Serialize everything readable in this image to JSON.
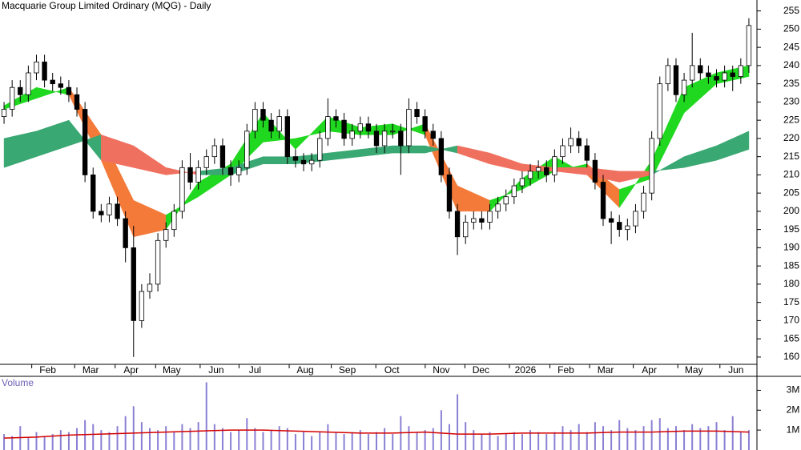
{
  "chart_data": [
    {
      "type": "candlestick",
      "title": "Macquarie Group Limited Ordinary (MQG) - Daily",
      "xlim": [
        -0.5,
        92.5
      ],
      "xticks": [
        {
          "value": 5.4,
          "label": "Feb"
        },
        {
          "value": 10.7,
          "label": "Mar"
        },
        {
          "value": 15.7,
          "label": "Apr"
        },
        {
          "value": 20.7,
          "label": "May"
        },
        {
          "value": 26.2,
          "label": "Jun"
        },
        {
          "value": 31,
          "label": "Jul"
        },
        {
          "value": 37.2,
          "label": "Aug"
        },
        {
          "value": 42.4,
          "label": "Sep"
        },
        {
          "value": 47.9,
          "label": "Oct"
        },
        {
          "value": 54,
          "label": "Nov"
        },
        {
          "value": 58.9,
          "label": "Dec"
        },
        {
          "value": 64.4,
          "label": "2026"
        },
        {
          "value": 69.4,
          "label": "Feb"
        },
        {
          "value": 74.3,
          "label": "Mar"
        },
        {
          "value": 79.7,
          "label": "Apr"
        },
        {
          "value": 85.2,
          "label": "May"
        },
        {
          "value": 90.4,
          "label": "Jun"
        }
      ],
      "ylim": [
        158,
        258
      ],
      "yticks": [
        160,
        165,
        170,
        175,
        180,
        185,
        190,
        195,
        200,
        205,
        210,
        215,
        220,
        225,
        230,
        235,
        240,
        245,
        250,
        255
      ],
      "up_color": "#ffffff",
      "down_color": "#000000",
      "outline_color": "#000000",
      "open": [
        226,
        228,
        234,
        232,
        238,
        241,
        236,
        235,
        234,
        232,
        228,
        210,
        200,
        199,
        202,
        198,
        190,
        170,
        178,
        180,
        192,
        195,
        200,
        212,
        208,
        212,
        215,
        218,
        212,
        210,
        212,
        222,
        228,
        225,
        222,
        226,
        215,
        214,
        213,
        214,
        220,
        226,
        225,
        220,
        222,
        224,
        222,
        218,
        222,
        222,
        218,
        228,
        226,
        222,
        220,
        210,
        200,
        193,
        197,
        198,
        197,
        200,
        202,
        204,
        207,
        209,
        211,
        212,
        210,
        215,
        218,
        220,
        218,
        214,
        208,
        198,
        197,
        195,
        196,
        200,
        205,
        220,
        235,
        240,
        232,
        236,
        240,
        238,
        237,
        236,
        238,
        237,
        240
      ],
      "high": [
        230,
        236,
        236,
        240,
        243,
        243,
        238,
        237,
        236,
        234,
        230,
        212,
        202,
        204,
        204,
        200,
        196,
        180,
        183,
        194,
        197,
        202,
        214,
        216,
        214,
        217,
        220,
        220,
        214,
        214,
        224,
        230,
        230,
        227,
        228,
        228,
        217,
        216,
        216,
        222,
        231,
        228,
        227,
        224,
        226,
        226,
        224,
        224,
        224,
        224,
        231,
        230,
        228,
        224,
        222,
        212,
        202,
        199,
        200,
        200,
        202,
        204,
        206,
        209,
        211,
        213,
        214,
        214,
        217,
        220,
        223,
        222,
        220,
        216,
        210,
        200,
        199,
        198,
        202,
        207,
        222,
        237,
        242,
        242,
        238,
        249,
        242,
        240,
        239,
        240,
        240,
        242,
        253
      ],
      "low": [
        224,
        226,
        230,
        230,
        236,
        234,
        233,
        232,
        230,
        226,
        208,
        198,
        197,
        197,
        196,
        186,
        160,
        168,
        176,
        178,
        190,
        193,
        198,
        206,
        206,
        210,
        213,
        210,
        207,
        208,
        210,
        220,
        223,
        220,
        220,
        213,
        212,
        211,
        211,
        212,
        218,
        223,
        218,
        218,
        220,
        220,
        216,
        216,
        220,
        210,
        216,
        224,
        220,
        218,
        208,
        198,
        188,
        191,
        195,
        195,
        195,
        198,
        200,
        202,
        205,
        207,
        209,
        208,
        208,
        213,
        216,
        216,
        212,
        206,
        196,
        191,
        193,
        192,
        194,
        198,
        203,
        218,
        233,
        230,
        230,
        234,
        236,
        235,
        234,
        234,
        233,
        235,
        238
      ],
      "close": [
        228,
        234,
        232,
        238,
        241,
        236,
        235,
        234,
        232,
        228,
        210,
        200,
        199,
        202,
        198,
        190,
        170,
        178,
        180,
        192,
        195,
        200,
        212,
        208,
        212,
        215,
        218,
        212,
        210,
        212,
        222,
        228,
        225,
        222,
        226,
        215,
        214,
        213,
        214,
        220,
        226,
        225,
        220,
        222,
        224,
        222,
        218,
        222,
        222,
        218,
        228,
        226,
        222,
        220,
        210,
        200,
        193,
        197,
        198,
        197,
        200,
        202,
        204,
        207,
        209,
        211,
        212,
        210,
        215,
        218,
        220,
        218,
        214,
        208,
        198,
        197,
        195,
        196,
        200,
        205,
        220,
        235,
        240,
        232,
        236,
        240,
        238,
        237,
        236,
        238,
        237,
        240,
        251
      ],
      "ribbons": [
        {
          "color_up": "#1fd81f",
          "color_down": "#f47a3a",
          "x": [
            0,
            4,
            8,
            12,
            16,
            20,
            24,
            28,
            32,
            36,
            40,
            44,
            48,
            52,
            56,
            60,
            64,
            68,
            72,
            76,
            80,
            84,
            88,
            92
          ],
          "short_ma": [
            229,
            234,
            232,
            214,
            193,
            195,
            208,
            213,
            227,
            217,
            226,
            223,
            224,
            221,
            200,
            200,
            209,
            215,
            210,
            201,
            214,
            234,
            238,
            240
          ],
          "long_ma": [
            228,
            231,
            234,
            221,
            203,
            199,
            204,
            210,
            219,
            220,
            222,
            221,
            221,
            224,
            207,
            203,
            206,
            211,
            213,
            206,
            209,
            227,
            235,
            237
          ]
        },
        {
          "color_up": "#3aa872",
          "color_down": "#f07060",
          "x": [
            0,
            4,
            8,
            12,
            16,
            20,
            24,
            28,
            32,
            36,
            40,
            44,
            48,
            52,
            56,
            60,
            64,
            68,
            72,
            76,
            80,
            84,
            88,
            92
          ],
          "short_ma": [
            220,
            222,
            225,
            214,
            212,
            210,
            211,
            212,
            215,
            215,
            216,
            217,
            218,
            218,
            216,
            213,
            211,
            211,
            210,
            208,
            210,
            215,
            218,
            222
          ],
          "long_ma": [
            212,
            215,
            218,
            221,
            218,
            212,
            210,
            210,
            213,
            213,
            214,
            215,
            216,
            216,
            218,
            216,
            213,
            212,
            212,
            211,
            211,
            212,
            214,
            217
          ]
        }
      ]
    },
    {
      "type": "bar",
      "title": "Volume",
      "color": "#8a80d4",
      "ylim": [
        0,
        3700000
      ],
      "yticks": [
        {
          "value": 1000000,
          "label": "1M"
        },
        {
          "value": 2000000,
          "label": "2M"
        },
        {
          "value": 3000000,
          "label": "3M"
        }
      ],
      "values": [
        800000,
        700000,
        1200000,
        600000,
        900000,
        700000,
        800000,
        1000000,
        900000,
        1100000,
        1500000,
        1300000,
        1000000,
        900000,
        1200000,
        1700000,
        2200000,
        1400000,
        1100000,
        1000000,
        1200000,
        900000,
        1300000,
        1100000,
        1400000,
        3400000,
        1300000,
        1100000,
        900000,
        1000000,
        1600000,
        1100000,
        900000,
        1000000,
        1200000,
        1100000,
        800000,
        900000,
        700000,
        900000,
        1300000,
        900000,
        800000,
        900000,
        1000000,
        800000,
        900000,
        1100000,
        800000,
        1700000,
        1200000,
        900000,
        1000000,
        1100000,
        2000000,
        1300000,
        2800000,
        1400000,
        1000000,
        800000,
        900000,
        700000,
        800000,
        900000,
        800000,
        1000000,
        900000,
        800000,
        900000,
        1200000,
        1000000,
        1300000,
        900000,
        1400000,
        1200000,
        1000000,
        1500000,
        1100000,
        1000000,
        1200000,
        1500000,
        1600000,
        1100000,
        1200000,
        1000000,
        1300000,
        1100000,
        1200000,
        1400000,
        1000000,
        1700000,
        900000,
        1000000
      ],
      "average": {
        "color": "#d40000",
        "x": [
          0,
          4,
          8,
          12,
          16,
          20,
          24,
          28,
          32,
          36,
          40,
          44,
          48,
          52,
          56,
          60,
          64,
          68,
          72,
          76,
          80,
          84,
          88,
          92
        ],
        "values": [
          600000,
          650000,
          750000,
          800000,
          850000,
          900000,
          950000,
          1000000,
          1000000,
          950000,
          900000,
          850000,
          850000,
          900000,
          800000,
          800000,
          850000,
          850000,
          850000,
          900000,
          900000,
          950000,
          950000,
          900000
        ]
      }
    }
  ]
}
